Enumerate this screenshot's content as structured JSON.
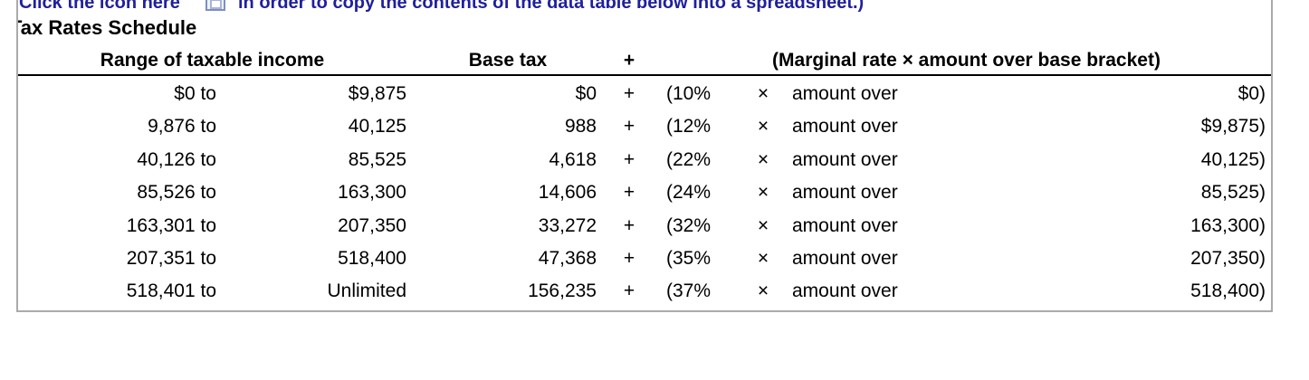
{
  "instruction": {
    "prefix": "Click the icon here",
    "suffix": "in order to copy the contents of the data table below into a spreadsheet.)",
    "icon": "copy-table-icon",
    "link_color": "#20209d"
  },
  "title": "Tax Rates Schedule",
  "table": {
    "headers": {
      "range": "Range of taxable income",
      "base_tax": "Base tax",
      "plus": "+",
      "marginal": "(Marginal rate × amount over base bracket)"
    },
    "rows": [
      {
        "from": "$0 to",
        "to": "$9,875",
        "base": "$0",
        "plus": "+",
        "rate": "(10%",
        "times": "×",
        "over_label": "amount over",
        "bracket": "$0)"
      },
      {
        "from": "9,876 to",
        "to": "40,125",
        "base": "988",
        "plus": "+",
        "rate": "(12%",
        "times": "×",
        "over_label": "amount over",
        "bracket": "$9,875)"
      },
      {
        "from": "40,126 to",
        "to": "85,525",
        "base": "4,618",
        "plus": "+",
        "rate": "(22%",
        "times": "×",
        "over_label": "amount over",
        "bracket": "40,125)"
      },
      {
        "from": "85,526 to",
        "to": "163,300",
        "base": "14,606",
        "plus": "+",
        "rate": "(24%",
        "times": "×",
        "over_label": "amount over",
        "bracket": "85,525)"
      },
      {
        "from": "163,301 to",
        "to": "207,350",
        "base": "33,272",
        "plus": "+",
        "rate": "(32%",
        "times": "×",
        "over_label": "amount over",
        "bracket": "163,300)"
      },
      {
        "from": "207,351 to",
        "to": "518,400",
        "base": "47,368",
        "plus": "+",
        "rate": "(35%",
        "times": "×",
        "over_label": "amount over",
        "bracket": "207,350)"
      },
      {
        "from": "518,401 to",
        "to": "Unlimited",
        "base": "156,235",
        "plus": "+",
        "rate": "(37%",
        "times": "×",
        "over_label": "amount over",
        "bracket": "518,400)"
      }
    ]
  }
}
